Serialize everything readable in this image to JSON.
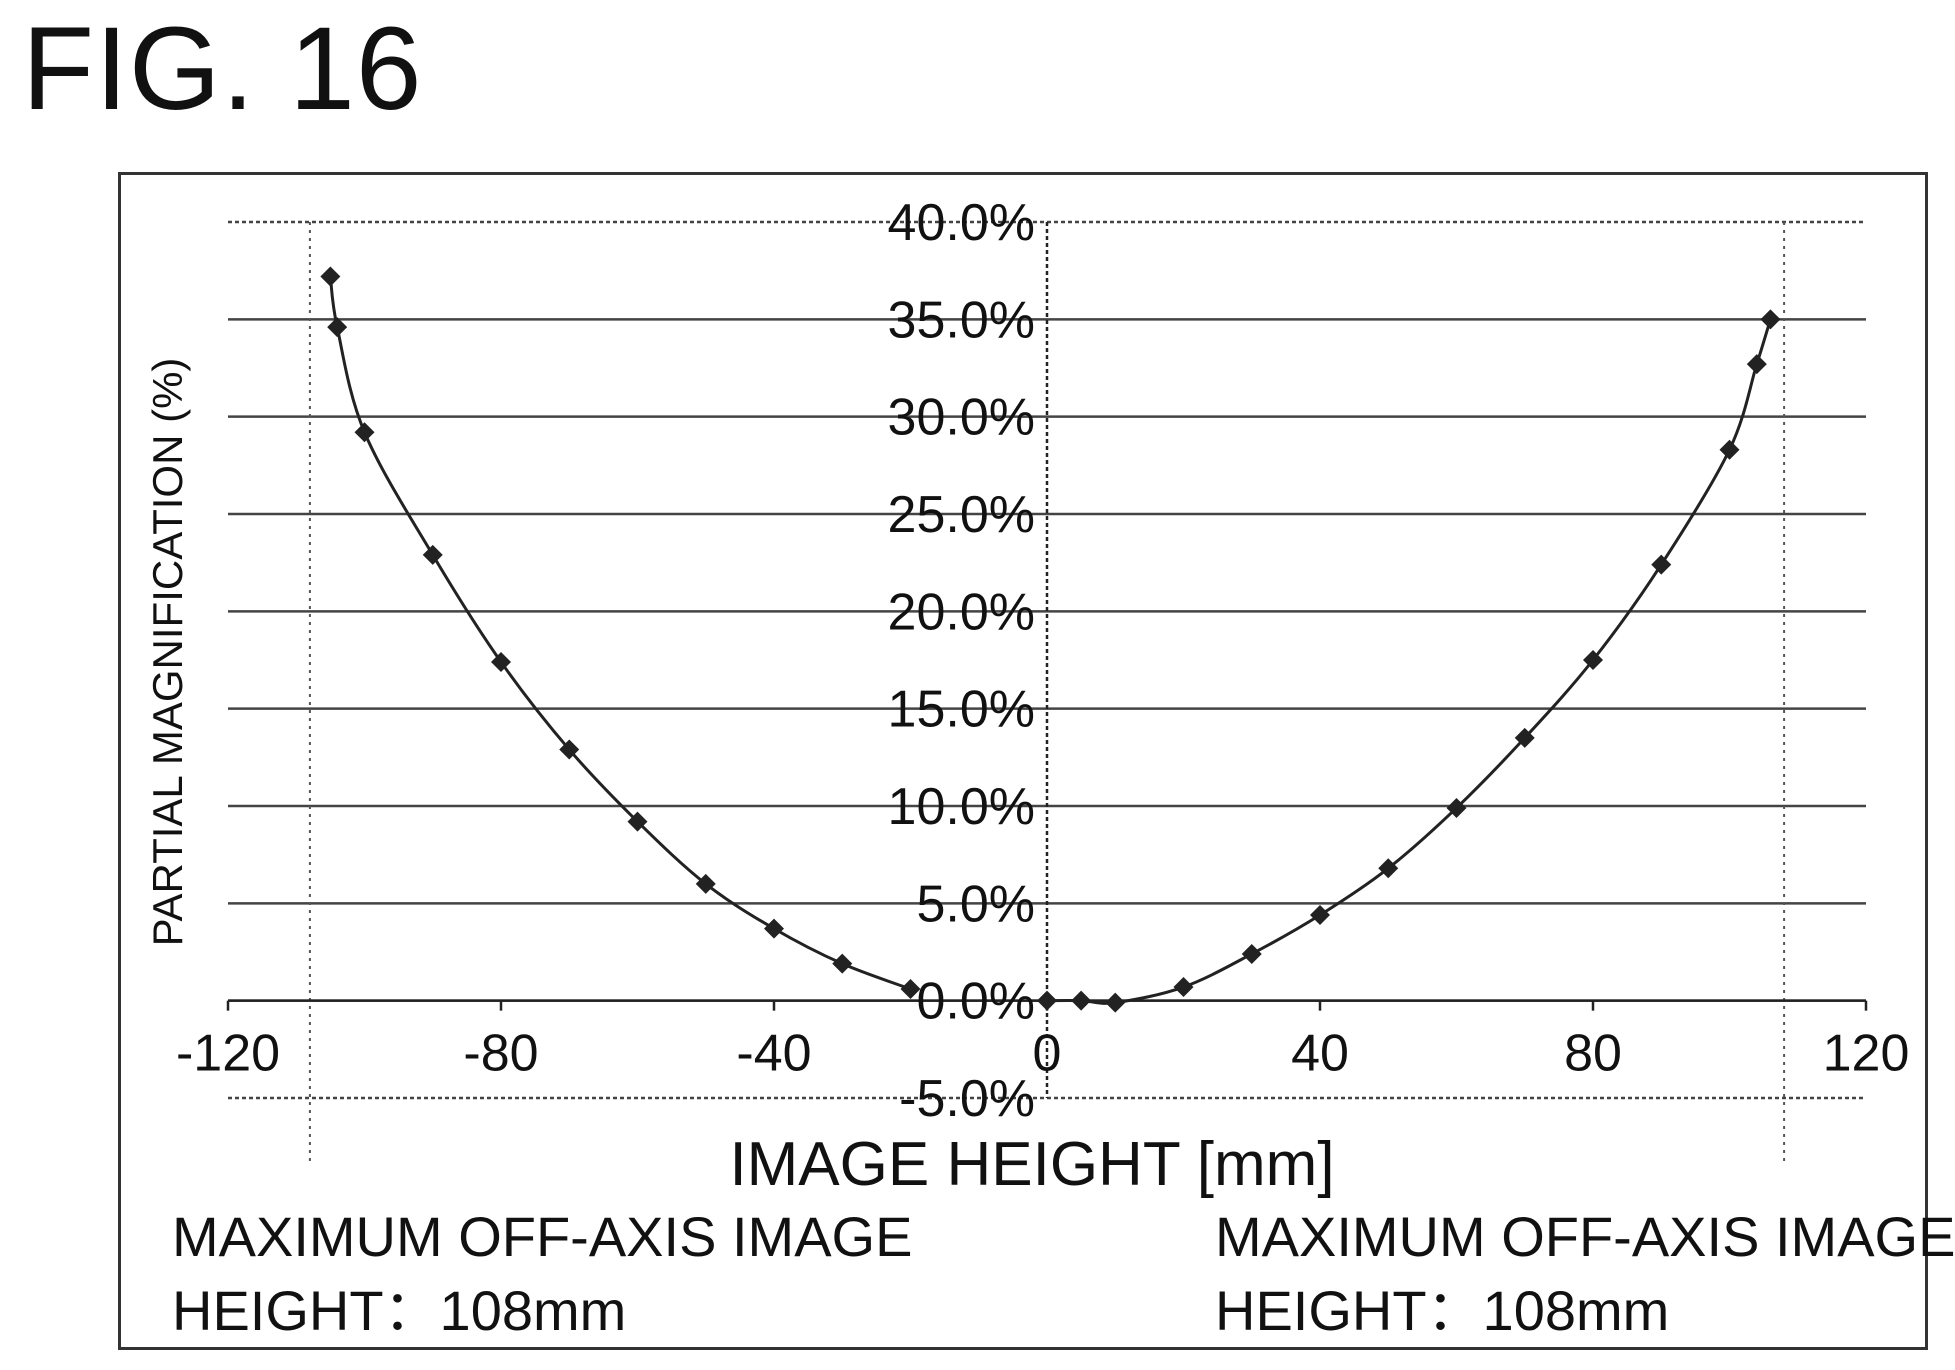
{
  "figure": {
    "title": "FIG. 16",
    "notes": [
      {
        "line1": "MAXIMUM OFF-AXIS IMAGE",
        "line2": "HEIGHT：108mm"
      },
      {
        "line1": "MAXIMUM OFF-AXIS IMAGE",
        "line2": "HEIGHT：108mm"
      }
    ]
  },
  "chart_data": {
    "type": "line",
    "xlabel": "IMAGE HEIGHT [mm]",
    "ylabel": "PARTIAL MAGNIFICATION (%)",
    "xlim": [
      -120,
      120
    ],
    "ylim": [
      -5,
      40
    ],
    "x_ticks": [
      -120,
      -80,
      -40,
      0,
      40,
      80,
      120
    ],
    "y_ticks": [
      -5,
      0,
      5,
      10,
      15,
      20,
      25,
      30,
      35,
      40
    ],
    "x_tick_labels": [
      "-120",
      "-80",
      "-40",
      "0",
      "40",
      "80",
      "120"
    ],
    "y_tick_labels": [
      "-5.0%",
      "0.0%",
      "5.0%",
      "10.0%",
      "15.0%",
      "20.0%",
      "25.0%",
      "30.0%",
      "35.0%",
      "40.0%"
    ],
    "grid": "horizontal solid at each y tick; dotted verticals at ±108",
    "reference_lines_x": [
      -108,
      108
    ],
    "series": [
      {
        "x": [
          -105,
          -104,
          -100,
          -90,
          -80,
          -70,
          -60,
          -50,
          -40,
          -30,
          -20
        ],
        "y": [
          37.2,
          34.6,
          29.2,
          22.9,
          17.4,
          12.9,
          9.2,
          6.0,
          3.7,
          1.9,
          0.6
        ]
      },
      {
        "x": [
          0,
          5,
          10,
          20,
          30,
          40,
          50,
          60,
          70,
          80,
          90,
          100,
          104,
          106
        ],
        "y": [
          0.0,
          0.0,
          -0.1,
          0.7,
          2.4,
          4.4,
          6.8,
          9.9,
          13.5,
          17.5,
          22.4,
          28.3,
          32.7,
          35.0
        ]
      }
    ]
  }
}
